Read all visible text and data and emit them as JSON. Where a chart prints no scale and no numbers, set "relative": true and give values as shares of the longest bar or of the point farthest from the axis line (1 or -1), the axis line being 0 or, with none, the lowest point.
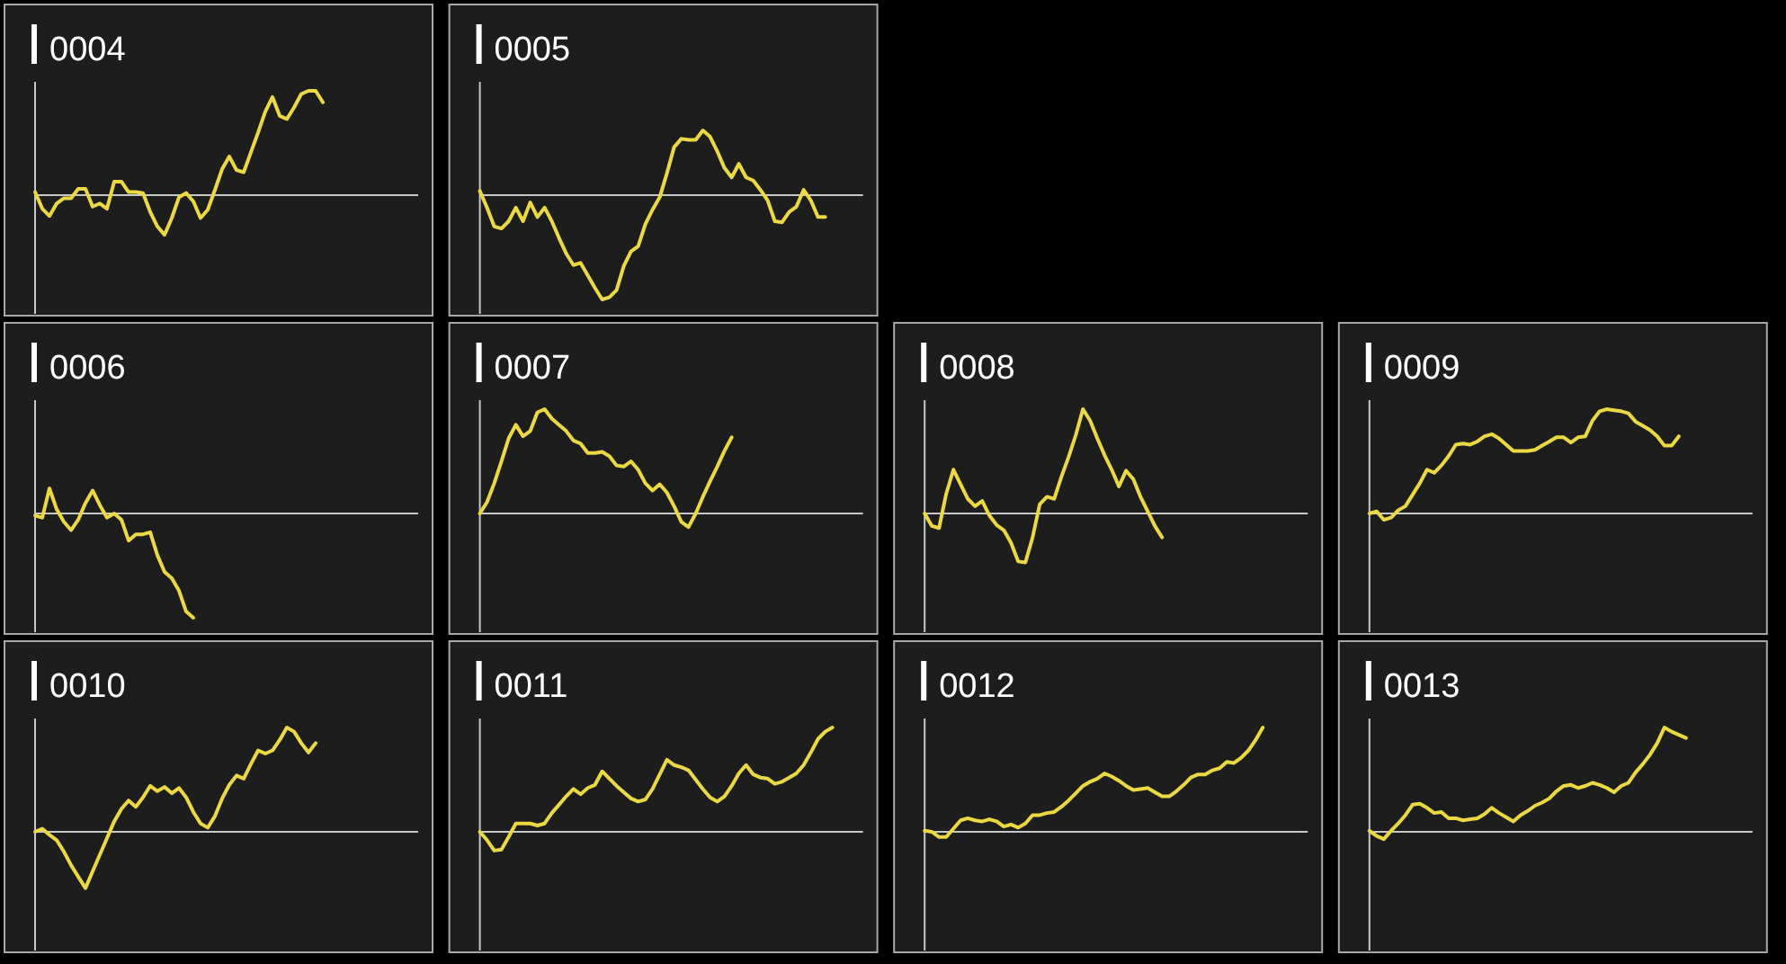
{
  "chart_data": [
    {
      "type": "line",
      "title": "0004",
      "relative": true,
      "categories": [
        null,
        null,
        null,
        null,
        null,
        null,
        null,
        null,
        null,
        null,
        null,
        null,
        null,
        null,
        null,
        null,
        null,
        null,
        null,
        null,
        null,
        null,
        null,
        null,
        null,
        null,
        null,
        null,
        null,
        null,
        null,
        null,
        null,
        null,
        null,
        null,
        null,
        null,
        null,
        null,
        null,
        null,
        null,
        null,
        null,
        null,
        null,
        null,
        null,
        null,
        null,
        null,
        null,
        null
      ],
      "series": [
        {
          "color": "#ecd843",
          "values": [
            0.03,
            -0.13,
            -0.2,
            -0.08,
            -0.03,
            -0.03,
            0.06,
            0.06,
            -0.11,
            -0.08,
            -0.13,
            0.13,
            0.13,
            0.03,
            0.03,
            0.02,
            -0.16,
            -0.3,
            -0.38,
            -0.22,
            -0.02,
            0.02,
            -0.06,
            -0.22,
            -0.14,
            0.05,
            0.25,
            0.37,
            0.24,
            0.22,
            0.41,
            0.6,
            0.8,
            0.94,
            0.76,
            0.73,
            0.84,
            0.97,
            1,
            1,
            0.89,
            null,
            null,
            null,
            null,
            null,
            null,
            null,
            null,
            null,
            null,
            null,
            null,
            null
          ]
        }
      ]
    },
    {
      "type": "line",
      "title": "0005",
      "relative": true,
      "categories": [
        null,
        null,
        null,
        null,
        null,
        null,
        null,
        null,
        null,
        null,
        null,
        null,
        null,
        null,
        null,
        null,
        null,
        null,
        null,
        null,
        null,
        null,
        null,
        null,
        null,
        null,
        null,
        null,
        null,
        null,
        null,
        null,
        null,
        null,
        null,
        null,
        null,
        null,
        null,
        null,
        null,
        null,
        null,
        null,
        null,
        null,
        null,
        null,
        null,
        null,
        null,
        null,
        null,
        null
      ],
      "series": [
        {
          "color": "#ecd843",
          "values": [
            0.04,
            -0.12,
            -0.3,
            -0.32,
            -0.25,
            -0.12,
            -0.25,
            -0.07,
            -0.21,
            -0.12,
            -0.25,
            -0.41,
            -0.56,
            -0.67,
            -0.65,
            -0.77,
            -0.89,
            -1,
            -0.98,
            -0.91,
            -0.68,
            -0.54,
            -0.49,
            -0.28,
            -0.14,
            -0.02,
            0.21,
            0.46,
            0.54,
            0.53,
            0.53,
            0.62,
            0.56,
            0.42,
            0.26,
            0.17,
            0.3,
            0.17,
            0.14,
            0.05,
            -0.05,
            -0.25,
            -0.26,
            -0.16,
            -0.11,
            0.05,
            -0.05,
            -0.21,
            -0.21,
            null,
            null,
            null,
            null,
            null
          ]
        }
      ]
    },
    {
      "type": "line",
      "title": "0006",
      "relative": true,
      "categories": [
        null,
        null,
        null,
        null,
        null,
        null,
        null,
        null,
        null,
        null,
        null,
        null,
        null,
        null,
        null,
        null,
        null,
        null,
        null,
        null,
        null,
        null,
        null,
        null,
        null,
        null,
        null,
        null,
        null,
        null,
        null,
        null,
        null,
        null,
        null,
        null,
        null,
        null,
        null,
        null,
        null,
        null,
        null,
        null,
        null,
        null,
        null,
        null,
        null,
        null,
        null,
        null,
        null,
        null
      ],
      "series": [
        {
          "color": "#ecd843",
          "values": [
            -0.02,
            -0.04,
            0.24,
            0.04,
            -0.08,
            -0.16,
            -0.06,
            0.1,
            0.22,
            0.08,
            -0.04,
            0,
            -0.06,
            -0.26,
            -0.2,
            -0.2,
            -0.18,
            -0.4,
            -0.56,
            -0.62,
            -0.74,
            -0.94,
            -1,
            null,
            null,
            null,
            null,
            null,
            null,
            null,
            null,
            null,
            null,
            null,
            null,
            null,
            null,
            null,
            null,
            null,
            null,
            null,
            null,
            null,
            null,
            null,
            null,
            null,
            null,
            null,
            null,
            null,
            null,
            null
          ]
        }
      ]
    },
    {
      "type": "line",
      "title": "0007",
      "relative": true,
      "categories": [
        null,
        null,
        null,
        null,
        null,
        null,
        null,
        null,
        null,
        null,
        null,
        null,
        null,
        null,
        null,
        null,
        null,
        null,
        null,
        null,
        null,
        null,
        null,
        null,
        null,
        null,
        null,
        null,
        null,
        null,
        null,
        null,
        null,
        null,
        null,
        null,
        null,
        null,
        null,
        null,
        null,
        null,
        null,
        null,
        null,
        null,
        null,
        null,
        null,
        null,
        null,
        null,
        null,
        null
      ],
      "series": [
        {
          "color": "#ecd843",
          "values": [
            0,
            0.11,
            0.29,
            0.5,
            0.72,
            0.85,
            0.74,
            0.79,
            0.97,
            1,
            0.91,
            0.85,
            0.79,
            0.7,
            0.67,
            0.58,
            0.58,
            0.59,
            0.55,
            0.46,
            0.45,
            0.5,
            0.42,
            0.29,
            0.22,
            0.28,
            0.2,
            0.07,
            -0.08,
            -0.13,
            0,
            0.16,
            0.31,
            0.45,
            0.6,
            0.73,
            null,
            null,
            null,
            null,
            null,
            null,
            null,
            null,
            null,
            null,
            null,
            null,
            null,
            null,
            null,
            null,
            null,
            null
          ]
        }
      ]
    },
    {
      "type": "line",
      "title": "0008",
      "relative": true,
      "categories": [
        null,
        null,
        null,
        null,
        null,
        null,
        null,
        null,
        null,
        null,
        null,
        null,
        null,
        null,
        null,
        null,
        null,
        null,
        null,
        null,
        null,
        null,
        null,
        null,
        null,
        null,
        null,
        null,
        null,
        null,
        null,
        null,
        null,
        null,
        null,
        null,
        null,
        null,
        null,
        null,
        null,
        null,
        null,
        null,
        null,
        null,
        null,
        null,
        null,
        null,
        null,
        null,
        null,
        null
      ],
      "series": [
        {
          "color": "#ecd843",
          "values": [
            0,
            -0.12,
            -0.14,
            0.19,
            0.42,
            0.28,
            0.14,
            0.07,
            0.12,
            -0.02,
            -0.11,
            -0.16,
            -0.28,
            -0.46,
            -0.47,
            -0.23,
            0.09,
            0.16,
            0.14,
            0.35,
            0.54,
            0.75,
            1,
            0.89,
            0.72,
            0.56,
            0.42,
            0.26,
            0.41,
            0.33,
            0.16,
            0.02,
            -0.12,
            -0.23,
            null,
            null,
            null,
            null,
            null,
            null,
            null,
            null,
            null,
            null,
            null,
            null,
            null,
            null,
            null,
            null,
            null,
            null,
            null,
            null
          ]
        }
      ]
    },
    {
      "type": "line",
      "title": "0009",
      "relative": true,
      "categories": [
        null,
        null,
        null,
        null,
        null,
        null,
        null,
        null,
        null,
        null,
        null,
        null,
        null,
        null,
        null,
        null,
        null,
        null,
        null,
        null,
        null,
        null,
        null,
        null,
        null,
        null,
        null,
        null,
        null,
        null,
        null,
        null,
        null,
        null,
        null,
        null,
        null,
        null,
        null,
        null,
        null,
        null,
        null,
        null,
        null,
        null,
        null,
        null,
        null,
        null,
        null,
        null,
        null,
        null
      ],
      "series": [
        {
          "color": "#ecd843",
          "values": [
            0,
            0.02,
            -0.06,
            -0.04,
            0.03,
            0.07,
            0.18,
            0.29,
            0.42,
            0.39,
            0.46,
            0.55,
            0.66,
            0.67,
            0.66,
            0.69,
            0.74,
            0.76,
            0.72,
            0.66,
            0.6,
            0.6,
            0.6,
            0.61,
            0.65,
            0.69,
            0.73,
            0.73,
            0.68,
            0.73,
            0.74,
            0.89,
            0.98,
            1,
            0.99,
            0.98,
            0.96,
            0.88,
            0.84,
            0.8,
            0.74,
            0.65,
            0.65,
            0.74,
            null,
            null,
            null,
            null,
            null,
            null,
            null,
            null,
            null,
            null
          ]
        }
      ]
    },
    {
      "type": "line",
      "title": "0010",
      "relative": true,
      "categories": [
        null,
        null,
        null,
        null,
        null,
        null,
        null,
        null,
        null,
        null,
        null,
        null,
        null,
        null,
        null,
        null,
        null,
        null,
        null,
        null,
        null,
        null,
        null,
        null,
        null,
        null,
        null,
        null,
        null,
        null,
        null,
        null,
        null,
        null,
        null,
        null,
        null,
        null,
        null,
        null,
        null,
        null,
        null,
        null,
        null,
        null,
        null,
        null,
        null,
        null,
        null,
        null,
        null,
        null
      ],
      "series": [
        {
          "color": "#ecd843",
          "values": [
            0,
            0.03,
            -0.03,
            -0.08,
            -0.19,
            -0.32,
            -0.43,
            -0.54,
            -0.38,
            -0.22,
            -0.06,
            0.1,
            0.22,
            0.3,
            0.24,
            0.33,
            0.44,
            0.39,
            0.43,
            0.37,
            0.42,
            0.33,
            0.19,
            0.08,
            0.04,
            0.15,
            0.32,
            0.45,
            0.54,
            0.51,
            0.65,
            0.78,
            0.75,
            0.78,
            0.88,
            1,
            0.96,
            0.85,
            0.76,
            0.85,
            null,
            null,
            null,
            null,
            null,
            null,
            null,
            null,
            null,
            null,
            null,
            null,
            null,
            null
          ]
        }
      ]
    },
    {
      "type": "line",
      "title": "0011",
      "relative": true,
      "categories": [
        null,
        null,
        null,
        null,
        null,
        null,
        null,
        null,
        null,
        null,
        null,
        null,
        null,
        null,
        null,
        null,
        null,
        null,
        null,
        null,
        null,
        null,
        null,
        null,
        null,
        null,
        null,
        null,
        null,
        null,
        null,
        null,
        null,
        null,
        null,
        null,
        null,
        null,
        null,
        null,
        null,
        null,
        null,
        null,
        null,
        null,
        null,
        null,
        null,
        null,
        null,
        null,
        null,
        null
      ],
      "series": [
        {
          "color": "#ecd843",
          "values": [
            0,
            -0.08,
            -0.18,
            -0.17,
            -0.05,
            0.08,
            0.08,
            0.08,
            0.06,
            0.08,
            0.18,
            0.26,
            0.34,
            0.41,
            0.36,
            0.42,
            0.45,
            0.58,
            0.51,
            0.44,
            0.38,
            0.32,
            0.29,
            0.31,
            0.41,
            0.55,
            0.69,
            0.64,
            0.62,
            0.59,
            0.5,
            0.41,
            0.33,
            0.29,
            0.34,
            0.44,
            0.56,
            0.64,
            0.55,
            0.52,
            0.51,
            0.46,
            0.48,
            0.52,
            0.56,
            0.64,
            0.76,
            0.89,
            0.96,
            1,
            null,
            null,
            null,
            null
          ]
        }
      ]
    },
    {
      "type": "line",
      "title": "0012",
      "relative": true,
      "categories": [
        null,
        null,
        null,
        null,
        null,
        null,
        null,
        null,
        null,
        null,
        null,
        null,
        null,
        null,
        null,
        null,
        null,
        null,
        null,
        null,
        null,
        null,
        null,
        null,
        null,
        null,
        null,
        null,
        null,
        null,
        null,
        null,
        null,
        null,
        null,
        null,
        null,
        null,
        null,
        null,
        null,
        null,
        null,
        null,
        null,
        null,
        null,
        null,
        null,
        null,
        null,
        null,
        null,
        null
      ],
      "series": [
        {
          "color": "#ecd843",
          "values": [
            0.01,
            0,
            -0.05,
            -0.05,
            0.03,
            0.11,
            0.13,
            0.11,
            0.1,
            0.12,
            0.1,
            0.05,
            0.07,
            0.04,
            0.08,
            0.16,
            0.16,
            0.18,
            0.19,
            0.24,
            0.3,
            0.37,
            0.44,
            0.48,
            0.51,
            0.56,
            0.53,
            0.49,
            0.44,
            0.4,
            0.41,
            0.42,
            0.38,
            0.34,
            0.34,
            0.39,
            0.45,
            0.52,
            0.55,
            0.55,
            0.59,
            0.61,
            0.67,
            0.66,
            0.71,
            0.78,
            0.88,
            1,
            null,
            null,
            null,
            null,
            null,
            null
          ]
        }
      ]
    },
    {
      "type": "line",
      "title": "0013",
      "relative": true,
      "categories": [
        null,
        null,
        null,
        null,
        null,
        null,
        null,
        null,
        null,
        null,
        null,
        null,
        null,
        null,
        null,
        null,
        null,
        null,
        null,
        null,
        null,
        null,
        null,
        null,
        null,
        null,
        null,
        null,
        null,
        null,
        null,
        null,
        null,
        null,
        null,
        null,
        null,
        null,
        null,
        null,
        null,
        null,
        null,
        null,
        null,
        null,
        null,
        null,
        null,
        null,
        null,
        null,
        null,
        null
      ],
      "series": [
        {
          "color": "#ecd843",
          "values": [
            0.01,
            -0.04,
            -0.07,
            0.01,
            0.08,
            0.16,
            0.26,
            0.27,
            0.23,
            0.18,
            0.19,
            0.13,
            0.13,
            0.11,
            0.12,
            0.13,
            0.17,
            0.23,
            0.18,
            0.14,
            0.1,
            0.16,
            0.2,
            0.25,
            0.28,
            0.32,
            0.39,
            0.44,
            0.45,
            0.42,
            0.44,
            0.47,
            0.45,
            0.42,
            0.38,
            0.44,
            0.47,
            0.57,
            0.65,
            0.74,
            0.85,
            1,
            0.96,
            0.93,
            0.9,
            null,
            null,
            null,
            null,
            null,
            null,
            null,
            null,
            null
          ]
        }
      ]
    }
  ]
}
